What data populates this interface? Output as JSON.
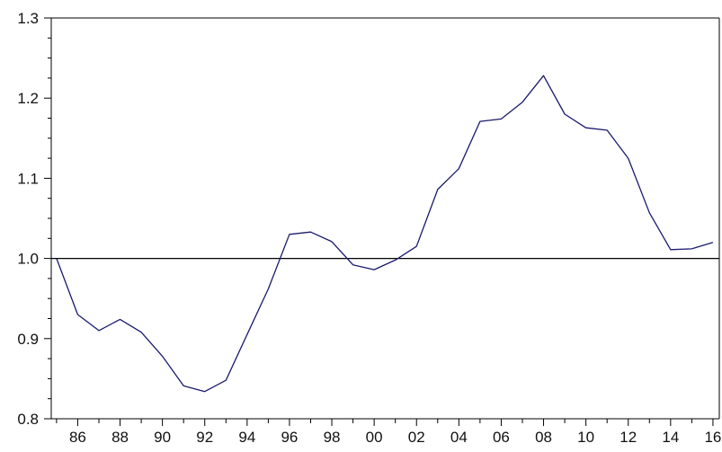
{
  "chart_data": {
    "type": "line",
    "title": "",
    "xlabel": "",
    "ylabel": "",
    "x": [
      1985,
      1986,
      1987,
      1988,
      1989,
      1990,
      1991,
      1992,
      1993,
      1994,
      1995,
      1996,
      1997,
      1998,
      1999,
      2000,
      2001,
      2002,
      2003,
      2004,
      2005,
      2006,
      2007,
      2008,
      2009,
      2010,
      2011,
      2012,
      2013,
      2014,
      2015,
      2016
    ],
    "series": [
      {
        "name": "",
        "color": "#1a1a6e",
        "values": [
          1.0,
          0.93,
          0.91,
          0.924,
          0.908,
          0.878,
          0.841,
          0.834,
          0.848,
          0.905,
          0.962,
          1.03,
          1.033,
          1.021,
          0.992,
          0.986,
          0.998,
          1.015,
          1.086,
          1.112,
          1.171,
          1.174,
          1.195,
          1.228,
          1.18,
          1.163,
          1.16,
          1.125,
          1.057,
          1.011,
          1.012,
          1.02
        ]
      }
    ],
    "xlim": [
      1984.75,
      2016.3
    ],
    "ylim": [
      0.8,
      1.3
    ],
    "x_tick_labels": [
      "86",
      "88",
      "90",
      "92",
      "94",
      "96",
      "98",
      "00",
      "02",
      "04",
      "06",
      "08",
      "10",
      "12",
      "14",
      "16"
    ],
    "y_tick_labels": [
      "0.8",
      "0.9",
      "1.0",
      "1.1",
      "1.2",
      "1.3"
    ],
    "reference_line": 1.0,
    "grid": false,
    "legend": "none"
  }
}
